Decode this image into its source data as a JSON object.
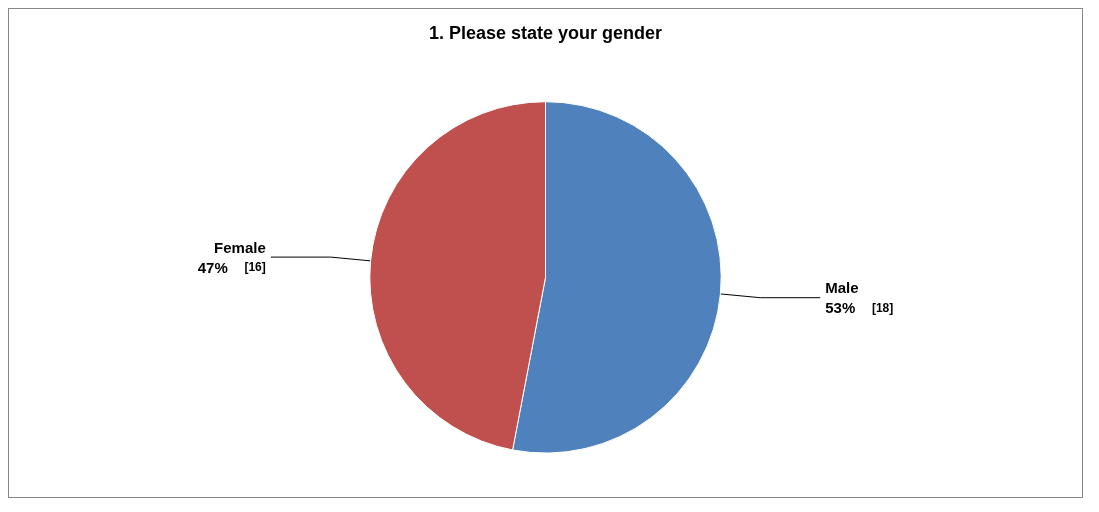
{
  "chart_data": {
    "type": "pie",
    "title": "1. Please state your gender",
    "categories": [
      "Male",
      "Female"
    ],
    "values": [
      53,
      47
    ],
    "colors": [
      "#4f81bd",
      "#c0504d"
    ],
    "value_labels": [
      "53%",
      "47%"
    ],
    "annotations": [
      "[18]",
      "[16]"
    ],
    "legend": false
  }
}
